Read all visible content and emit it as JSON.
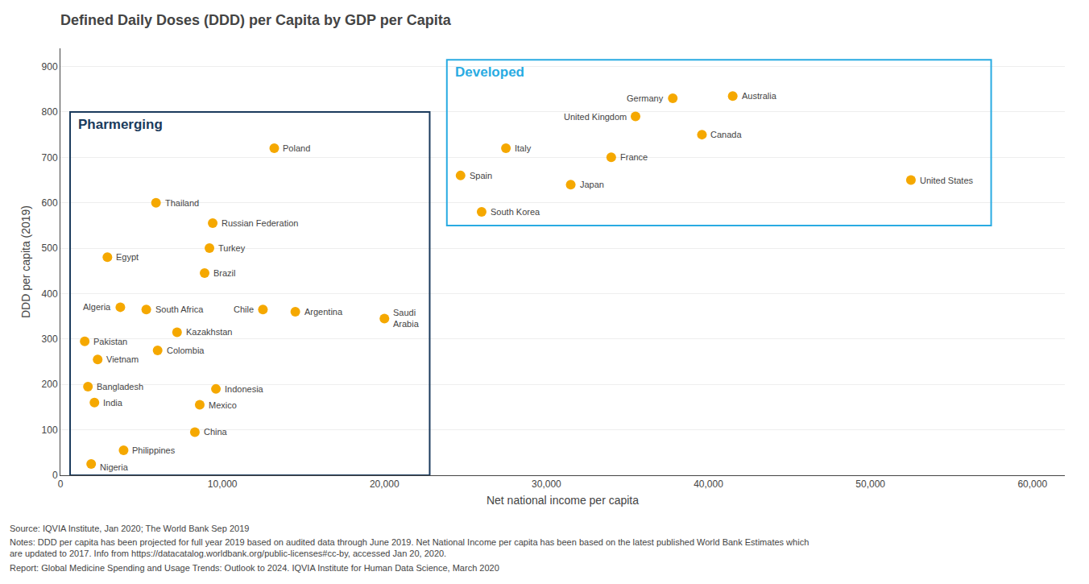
{
  "chart_data": {
    "type": "scatter",
    "title": "Defined Daily Doses (DDD) per Capita by GDP per Capita",
    "xlabel": "Net national income per capita",
    "ylabel": "DDD per capita (2019)",
    "xlim": [
      0,
      62000
    ],
    "ylim": [
      0,
      940
    ],
    "xticks": [
      0,
      {
        "value": 10000,
        "label": "10,000"
      },
      {
        "value": 20000,
        "label": "20,000"
      },
      {
        "value": 30000,
        "label": "30,000"
      },
      {
        "value": 40000,
        "label": "40,000"
      },
      {
        "value": 50000,
        "label": "50,000"
      },
      {
        "value": 60000,
        "label": "60,000"
      }
    ],
    "yticks": [
      0,
      100,
      200,
      300,
      400,
      500,
      600,
      700,
      800,
      900
    ],
    "grid": "y",
    "color": "#F5A800",
    "groups": [
      {
        "name": "Pharmerging",
        "color": "#1a3a5c",
        "points": [
          {
            "name": "Nigeria",
            "x": 1900,
            "y": 25
          },
          {
            "name": "Bangladesh",
            "x": 1700,
            "y": 195
          },
          {
            "name": "Pakistan",
            "x": 1500,
            "y": 295
          },
          {
            "name": "Vietnam",
            "x": 2300,
            "y": 255
          },
          {
            "name": "India",
            "x": 2100,
            "y": 160
          },
          {
            "name": "Egypt",
            "x": 2900,
            "y": 480
          },
          {
            "name": "Algeria",
            "x": 3700,
            "y": 370
          },
          {
            "name": "Thailand",
            "x": 5900,
            "y": 600
          },
          {
            "name": "South Africa",
            "x": 5300,
            "y": 365
          },
          {
            "name": "Philippines",
            "x": 3900,
            "y": 55
          },
          {
            "name": "Indonesia",
            "x": 9600,
            "y": 190
          },
          {
            "name": "China",
            "x": 8300,
            "y": 95
          },
          {
            "name": "Mexico",
            "x": 8600,
            "y": 155
          },
          {
            "name": "Colombia",
            "x": 6000,
            "y": 275
          },
          {
            "name": "Kazakhstan",
            "x": 7200,
            "y": 315
          },
          {
            "name": "Brazil",
            "x": 8900,
            "y": 445
          },
          {
            "name": "Turkey",
            "x": 9200,
            "y": 500
          },
          {
            "name": "Russian Federation",
            "x": 9400,
            "y": 555
          },
          {
            "name": "Chile",
            "x": 12500,
            "y": 365
          },
          {
            "name": "Argentina",
            "x": 14500,
            "y": 360
          },
          {
            "name": "Poland",
            "x": 13200,
            "y": 720
          },
          {
            "name": "Saudi\nArabia",
            "x": 20000,
            "y": 345
          }
        ]
      },
      {
        "name": "Developed",
        "color": "#29abe2",
        "points": [
          {
            "name": "South Korea",
            "x": 26000,
            "y": 580
          },
          {
            "name": "Spain",
            "x": 24700,
            "y": 660
          },
          {
            "name": "Italy",
            "x": 27500,
            "y": 720
          },
          {
            "name": "Japan",
            "x": 31500,
            "y": 640
          },
          {
            "name": "France",
            "x": 34000,
            "y": 700
          },
          {
            "name": "United Kingdom",
            "x": 35500,
            "y": 790
          },
          {
            "name": "Germany",
            "x": 37800,
            "y": 830
          },
          {
            "name": "Canada",
            "x": 39600,
            "y": 750
          },
          {
            "name": "Australia",
            "x": 41500,
            "y": 835
          },
          {
            "name": "United States",
            "x": 52500,
            "y": 650
          }
        ]
      }
    ],
    "footnotes": [
      "Source: IQVIA Institute, Jan 2020; The World Bank Sep 2019",
      "Notes: DDD per capita has been projected for full year 2019 based on audited data through June 2019. Net National Income per capita has been based on the latest published World Bank Estimates which are updated to 2017. Info from https://datacatalog.worldbank.org/public-licenses#cc-by, accessed Jan 20, 2020.",
      "Report: Global Medicine Spending and Usage Trends: Outlook to 2024. IQVIA Institute for Human Data Science, March 2020"
    ]
  }
}
